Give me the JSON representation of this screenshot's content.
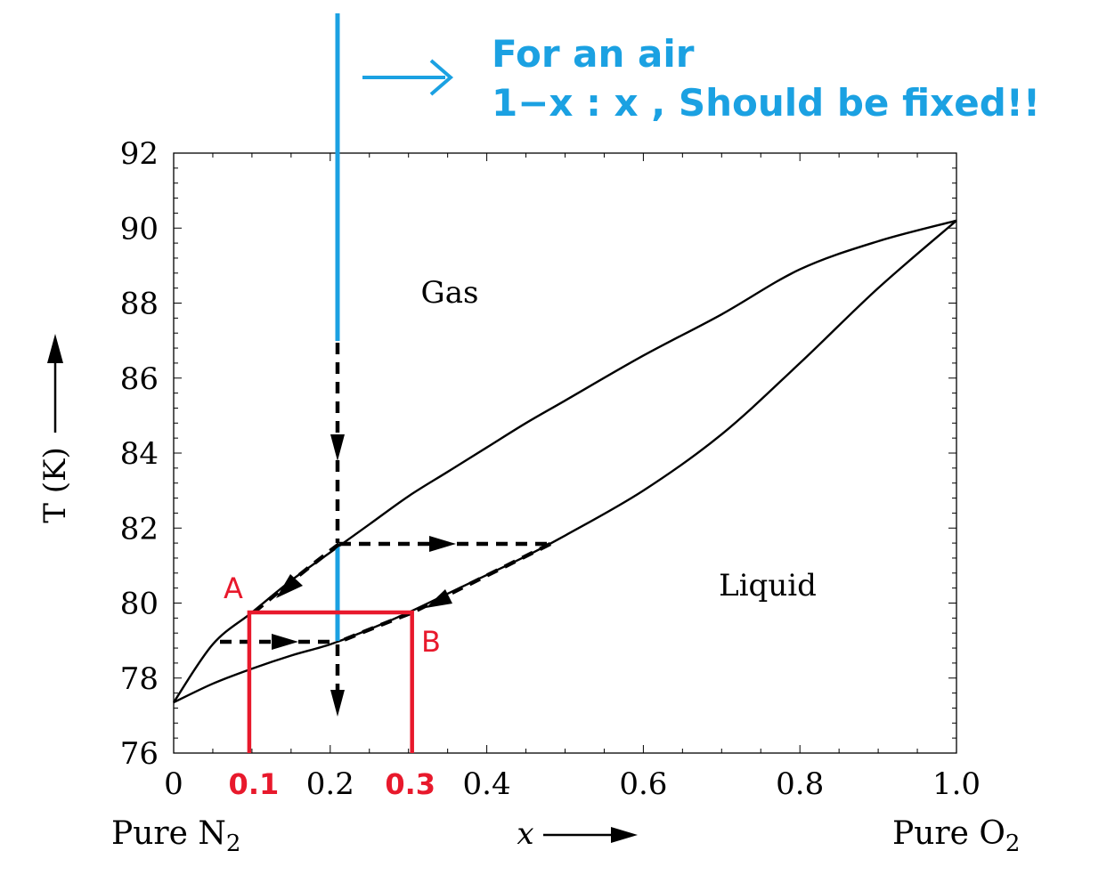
{
  "chart_data": {
    "type": "line",
    "title": "",
    "xlabel": "x",
    "ylabel": "T (K)",
    "xlim": [
      0,
      1.0
    ],
    "ylim": [
      76,
      92
    ],
    "x_ticks": [
      0,
      0.2,
      0.4,
      0.6,
      0.8,
      1.0
    ],
    "x_tick_labels": [
      "0",
      "0.2",
      "0.4",
      "0.6",
      "0.8",
      "1.0"
    ],
    "y_ticks": [
      76,
      78,
      80,
      82,
      84,
      86,
      88,
      90,
      92
    ],
    "y_tick_labels": [
      "76",
      "78",
      "80",
      "82",
      "84",
      "86",
      "88",
      "90",
      "92"
    ],
    "grid": false,
    "x_end_labels": {
      "left": "Pure N",
      "left_sub": "2",
      "right": "Pure O",
      "right_sub": "2"
    },
    "series": [
      {
        "role": "dew curve",
        "points": [
          [
            0,
            77.35
          ],
          [
            0.05,
            78.9
          ],
          [
            0.1,
            79.75
          ],
          [
            0.15,
            80.6
          ],
          [
            0.2,
            81.35
          ],
          [
            0.25,
            82.1
          ],
          [
            0.3,
            82.85
          ],
          [
            0.35,
            83.5
          ],
          [
            0.4,
            84.15
          ],
          [
            0.45,
            84.8
          ],
          [
            0.5,
            85.4
          ],
          [
            0.6,
            86.6
          ],
          [
            0.7,
            87.7
          ],
          [
            0.8,
            88.9
          ],
          [
            0.9,
            89.65
          ],
          [
            1.0,
            90.2
          ]
        ]
      },
      {
        "role": "bubble curve",
        "points": [
          [
            0,
            77.35
          ],
          [
            0.05,
            77.85
          ],
          [
            0.1,
            78.25
          ],
          [
            0.15,
            78.6
          ],
          [
            0.2,
            78.9
          ],
          [
            0.25,
            79.3
          ],
          [
            0.3,
            79.75
          ],
          [
            0.35,
            80.25
          ],
          [
            0.4,
            80.75
          ],
          [
            0.45,
            81.25
          ],
          [
            0.5,
            81.8
          ],
          [
            0.6,
            83.0
          ],
          [
            0.7,
            84.5
          ],
          [
            0.8,
            86.4
          ],
          [
            0.9,
            88.4
          ],
          [
            1.0,
            90.2
          ]
        ]
      }
    ],
    "region_labels": [
      "Gas",
      "Liquid"
    ],
    "annotations": {
      "point_labels": [
        "A",
        "B"
      ],
      "composition_marks": [
        "0.1",
        "0.3"
      ],
      "note_lines": [
        "For an air",
        "1−x : x , Should be fixed!!"
      ]
    },
    "colors": {
      "curve": "#000000",
      "air_line": "#1ba1e2",
      "note": "#1ba1e2",
      "marks": "#e8192c"
    }
  }
}
